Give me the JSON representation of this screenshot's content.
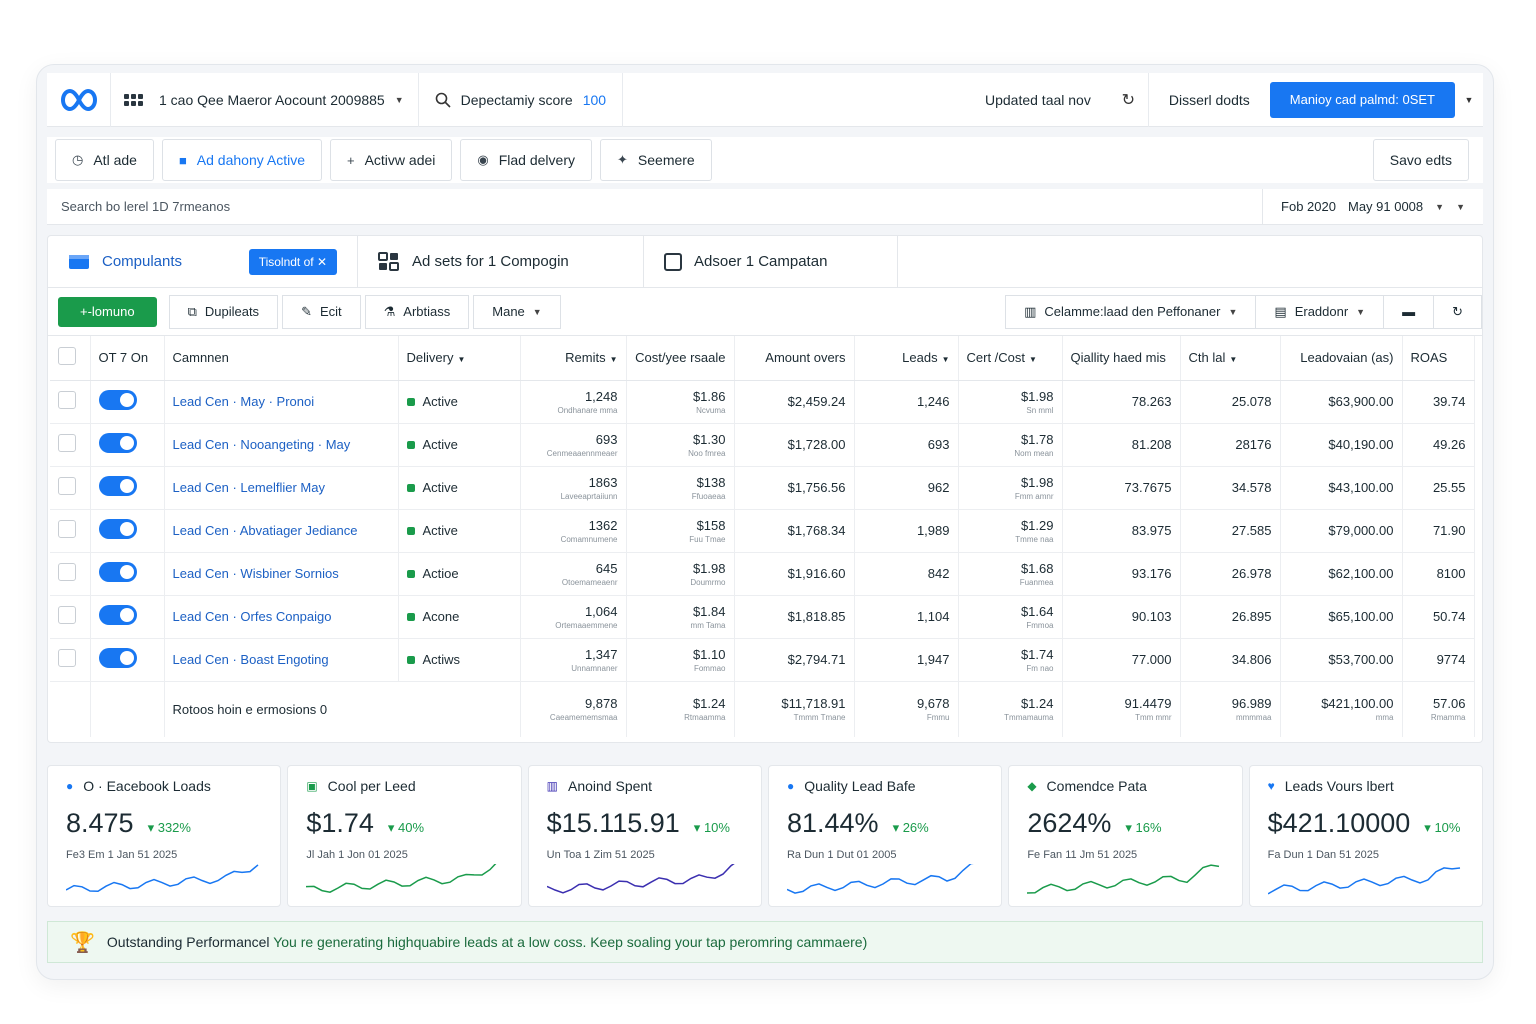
{
  "header": {
    "account": "1 cao Qee Maeror Aocount 2009885",
    "score_label": "Depectamiy score",
    "score_value": "100",
    "updated": "Updated taal nov",
    "discard": "Disserl dodts",
    "publish": "Manioy cad palmd: 0SET"
  },
  "toolbar": {
    "items": [
      "Atl ade",
      "Ad dahony Active",
      "Activw adei",
      "Flad delvery",
      "Seemere"
    ],
    "save": "Savo edts"
  },
  "search": {
    "placeholder": "Search bo lerel 1D 7rmeanos",
    "date_start": "Fob 2020",
    "date_end": "May 91 0008"
  },
  "levels": {
    "campaigns": "Compulants",
    "campaigns_badge": "Tisolndt of",
    "adsets": "Ad sets for 1 Compogin",
    "ads": "Adsoer 1 Campatan"
  },
  "actions": {
    "create": "+-lomuno",
    "duplicate": "Dupileats",
    "edit": "Ecit",
    "abtest": "Arbtiass",
    "more": "Mane",
    "columns": "Celamme:laad den Peffonaner",
    "breakdown": "Eraddonr"
  },
  "table": {
    "columns": [
      "OT 7 On",
      "Camnnen",
      "Delivery",
      "Remits",
      "Cost/yee rsaale",
      "Amount overs",
      "Leads",
      "Cert /Cost",
      "Qiallity haed mis",
      "Cth lal",
      "Leadovaian (as)",
      "ROAS"
    ],
    "rows": [
      {
        "name": "Lead Cen · May · Pronoi",
        "status": "Active",
        "results": "1,248",
        "results_sub": "Ondhanare mma",
        "cpr": "$1.86",
        "cpr_sub": "Ncvuma",
        "spent": "$2,459.24",
        "leads": "1,246",
        "cost": "$1.98",
        "cost_sub": "Sn mml",
        "quality": "78.263",
        "ctr": "25.078",
        "value": "$63,900.00",
        "roas": "39.74"
      },
      {
        "name": "Lead Cen · Nooangeting · May",
        "status": "Active",
        "results": "693",
        "results_sub": "Cenmeaaennmeaer",
        "cpr": "$1.30",
        "cpr_sub": "Noo fmrea",
        "spent": "$1,728.00",
        "leads": "693",
        "cost": "$1.78",
        "cost_sub": "Nom mean",
        "quality": "81.208",
        "ctr": "28176",
        "value": "$40,190.00",
        "roas": "49.26"
      },
      {
        "name": "Lead Cen · Lemelflier May",
        "status": "Active",
        "results": "1863",
        "results_sub": "Laveeaprtaiiunn",
        "cpr": "$138",
        "cpr_sub": "Ffuoaeaa",
        "spent": "$1,756.56",
        "leads": "962",
        "cost": "$1.98",
        "cost_sub": "Fmm amnr",
        "quality": "73.7675",
        "ctr": "34.578",
        "value": "$43,100.00",
        "roas": "25.55"
      },
      {
        "name": "Lead Cen · Abvatiager Jediance",
        "status": "Active",
        "results": "1362",
        "results_sub": "Comamnumene",
        "cpr": "$158",
        "cpr_sub": "Fuu Tmae",
        "spent": "$1,768.34",
        "leads": "1,989",
        "cost": "$1.29",
        "cost_sub": "Tmme naa",
        "quality": "83.975",
        "ctr": "27.585",
        "value": "$79,000.00",
        "roas": "71.90"
      },
      {
        "name": "Lead Cen · Wisbiner Sornios",
        "status": "Actioe",
        "results": "645",
        "results_sub": "Otoemameaenr",
        "cpr": "$1.98",
        "cpr_sub": "Doumrmo",
        "spent": "$1,916.60",
        "leads": "842",
        "cost": "$1.68",
        "cost_sub": "Fuanmea",
        "quality": "93.176",
        "ctr": "26.978",
        "value": "$62,100.00",
        "roas": "8100"
      },
      {
        "name": "Lead Cen · Orfes Conpaigo",
        "status": "Acone",
        "results": "1,064",
        "results_sub": "Ortemaaemmene",
        "cpr": "$1.84",
        "cpr_sub": "mm Tama",
        "spent": "$1,818.85",
        "leads": "1,104",
        "cost": "$1.64",
        "cost_sub": "Fmmoa",
        "quality": "90.103",
        "ctr": "26.895",
        "value": "$65,100.00",
        "roas": "50.74"
      },
      {
        "name": "Lead Cen · Boast Engoting",
        "status": "Actiws",
        "results": "1,347",
        "results_sub": "Unnamnaner",
        "cpr": "$1.10",
        "cpr_sub": "Fommao",
        "spent": "$2,794.71",
        "leads": "1,947",
        "cost": "$1.74",
        "cost_sub": "Fm nao",
        "quality": "77.000",
        "ctr": "34.806",
        "value": "$53,700.00",
        "roas": "9774"
      }
    ],
    "total": {
      "label": "Rotoos hoin e ermosions 0",
      "results": "9,878",
      "results_sub": "Caeamememsmaa",
      "cpr": "$1.24",
      "cpr_sub": "Rtmaamma",
      "spent": "$11,718.91",
      "spent_sub": "Tmmm Tmane",
      "leads": "9,678",
      "leads_sub": "Fmmu",
      "cost": "$1.24",
      "cost_sub": "Tmmamauma",
      "quality": "91.4479",
      "quality_sub": "Tmm mmr",
      "ctr": "96.989",
      "ctr_sub": "mmmmaa",
      "value": "$421,100.00",
      "value_sub": "mma",
      "roas": "57.06",
      "roas_sub": "Rmamma"
    }
  },
  "kpis": [
    {
      "title": "O · Eacebook Loads",
      "value": "8.475",
      "delta": "332%",
      "dates": "Fe3 Em 1   Jan 51 2025",
      "color": "#1877f2"
    },
    {
      "title": "Cool per Leed",
      "value": "$1.74",
      "delta": "40%",
      "dates": "Jl Jah 1   Jon 01 2025",
      "color": "#1a9b4b"
    },
    {
      "title": "Anoind Spent",
      "value": "$15.115.91",
      "delta": "10%",
      "dates": "Un Toa 1   Zim 51 2025",
      "color": "#3b2fb0"
    },
    {
      "title": "Quality Lead Bafe",
      "value": "81.44%",
      "delta": "26%",
      "dates": "Ra Dun 1   Dut 01 2005",
      "color": "#1877f2"
    },
    {
      "title": "Comendce Pata",
      "value": "2624%",
      "delta": "16%",
      "dates": "Fe Fan 11   Jm 51 2025",
      "color": "#1a9b4b"
    },
    {
      "title": "Leads Vours lbert",
      "value": "$421.10000",
      "delta": "10%",
      "dates": "Fa Dun 1   Dan 51 2025",
      "color": "#1877f2"
    }
  ],
  "banner": {
    "title": "Outstanding Performancel",
    "text": "You re generating highquabire leads at a low coss. Keep soaling your tap peromring cammaere)"
  }
}
